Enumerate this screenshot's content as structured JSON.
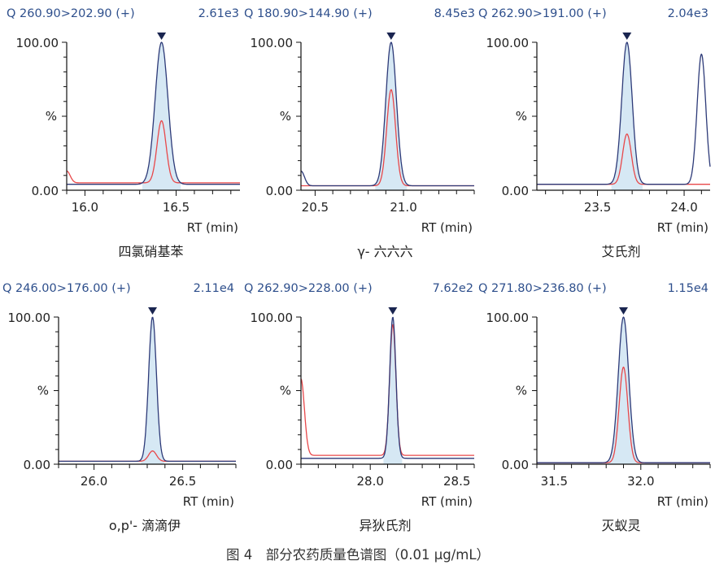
{
  "figure_caption": "图 4　部分农药质量色谱图（0.01 μg/mL）",
  "colors": {
    "trace_primary": "#2d3a78",
    "trace_secondary": "#e8484a",
    "fill": "#d6e8f4",
    "header_text": "#2e4f8c",
    "marker": "#1a2550"
  },
  "chart_data": [
    {
      "type": "line",
      "title": "四氯硝基苯",
      "mrm": "Q 260.90>202.90 (+)",
      "intensity": "2.61e3",
      "xlabel": "RT (min)",
      "ylabel": "%",
      "y_top_label": "100.00",
      "y_bottom_label": "0.00",
      "xlim": [
        15.9,
        16.85
      ],
      "ylim": [
        0,
        100
      ],
      "xticks": [
        "16.0",
        "16.5"
      ],
      "xtick_values": [
        16.0,
        16.5
      ],
      "peak_marker_rt": 16.42,
      "series": [
        {
          "name": "quantifier",
          "color": "#2d3a78",
          "baseline": 4,
          "peaks": [
            {
              "rt": 16.42,
              "height": 100,
              "width": 0.035
            }
          ]
        },
        {
          "name": "qualifier",
          "color": "#e8484a",
          "baseline": 5,
          "start_bump": 8,
          "peaks": [
            {
              "rt": 16.42,
              "height": 47,
              "width": 0.025
            }
          ]
        }
      ]
    },
    {
      "type": "line",
      "title": "γ- 六六六",
      "mrm": "Q 180.90>144.90 (+)",
      "intensity": "8.45e3",
      "xlabel": "RT (min)",
      "ylabel": "%",
      "y_top_label": "100.00",
      "y_bottom_label": "0.00",
      "xlim": [
        20.42,
        21.4
      ],
      "ylim": [
        0,
        100
      ],
      "xticks": [
        "20.5",
        "21.0"
      ],
      "xtick_values": [
        20.5,
        21.0
      ],
      "peak_marker_rt": 20.93,
      "series": [
        {
          "name": "quantifier",
          "color": "#2d3a78",
          "baseline": 3,
          "start_bump": 10,
          "peaks": [
            {
              "rt": 20.93,
              "height": 100,
              "width": 0.03
            }
          ]
        },
        {
          "name": "qualifier",
          "color": "#e8484a",
          "baseline": 3,
          "peaks": [
            {
              "rt": 20.93,
              "height": 68,
              "width": 0.025
            }
          ]
        }
      ]
    },
    {
      "type": "line",
      "title": "艾氏剂",
      "mrm": "Q 262.90>191.00 (+)",
      "intensity": "2.04e3",
      "xlabel": "RT (min)",
      "ylabel": "%",
      "y_top_label": "100.00",
      "y_bottom_label": "0.00",
      "xlim": [
        23.15,
        24.15
      ],
      "ylim": [
        0,
        100
      ],
      "xticks": [
        "23.5",
        "24.0"
      ],
      "xtick_values": [
        23.5,
        24.0
      ],
      "peak_marker_rt": 23.67,
      "series": [
        {
          "name": "quantifier",
          "color": "#2d3a78",
          "baseline": 4,
          "peaks": [
            {
              "rt": 23.67,
              "height": 100,
              "width": 0.03
            },
            {
              "rt": 24.1,
              "height": 92,
              "width": 0.025
            }
          ]
        },
        {
          "name": "qualifier",
          "color": "#e8484a",
          "baseline": 4,
          "peaks": [
            {
              "rt": 23.67,
              "height": 38,
              "width": 0.025
            }
          ]
        }
      ]
    },
    {
      "type": "line",
      "title": "o,p'- 滴滴伊",
      "mrm": "Q 246.00>176.00 (+)",
      "intensity": "2.11e4",
      "xlabel": "RT (min)",
      "ylabel": "%",
      "y_top_label": "100.00",
      "y_bottom_label": "0.00",
      "xlim": [
        25.8,
        26.8
      ],
      "ylim": [
        0,
        100
      ],
      "xticks": [
        "26.0",
        "26.5"
      ],
      "xtick_values": [
        26.0,
        26.5
      ],
      "peak_marker_rt": 26.33,
      "series": [
        {
          "name": "quantifier",
          "color": "#2d3a78",
          "baseline": 2,
          "peaks": [
            {
              "rt": 26.33,
              "height": 100,
              "width": 0.022
            }
          ]
        },
        {
          "name": "qualifier",
          "color": "#e8484a",
          "baseline": 2,
          "peaks": [
            {
              "rt": 26.33,
              "height": 9,
              "width": 0.022
            }
          ]
        }
      ]
    },
    {
      "type": "line",
      "title": "异狄氏剂",
      "mrm": "Q 262.90>228.00 (+)",
      "intensity": "7.62e2",
      "xlabel": "RT (min)",
      "ylabel": "%",
      "y_top_label": "100.00",
      "y_bottom_label": "0.00",
      "xlim": [
        27.6,
        28.6
      ],
      "ylim": [
        0,
        100
      ],
      "xticks": [
        "28.0",
        "28.5"
      ],
      "xtick_values": [
        28.0,
        28.5
      ],
      "peak_marker_rt": 28.13,
      "series": [
        {
          "name": "quantifier",
          "color": "#2d3a78",
          "baseline": 4,
          "peaks": [
            {
              "rt": 28.13,
              "height": 100,
              "width": 0.018
            }
          ]
        },
        {
          "name": "qualifier",
          "color": "#e8484a",
          "baseline": 6,
          "start_bump": 52,
          "peaks": [
            {
              "rt": 28.13,
              "height": 95,
              "width": 0.018
            }
          ]
        }
      ]
    },
    {
      "type": "line",
      "title": "灭蚁灵",
      "mrm": "Q 271.80>236.80 (+)",
      "intensity": "1.15e4",
      "xlabel": "RT (min)",
      "ylabel": "%",
      "y_top_label": "100.00",
      "y_bottom_label": "0.00",
      "xlim": [
        31.4,
        32.4
      ],
      "ylim": [
        0,
        100
      ],
      "xticks": [
        "31.5",
        "32.0"
      ],
      "xtick_values": [
        31.5,
        32.0
      ],
      "peak_marker_rt": 31.9,
      "series": [
        {
          "name": "quantifier",
          "color": "#2d3a78",
          "baseline": 1,
          "peaks": [
            {
              "rt": 31.9,
              "height": 100,
              "width": 0.03
            }
          ]
        },
        {
          "name": "qualifier",
          "color": "#e8484a",
          "baseline": 1,
          "peaks": [
            {
              "rt": 31.9,
              "height": 66,
              "width": 0.025
            }
          ]
        }
      ]
    }
  ]
}
